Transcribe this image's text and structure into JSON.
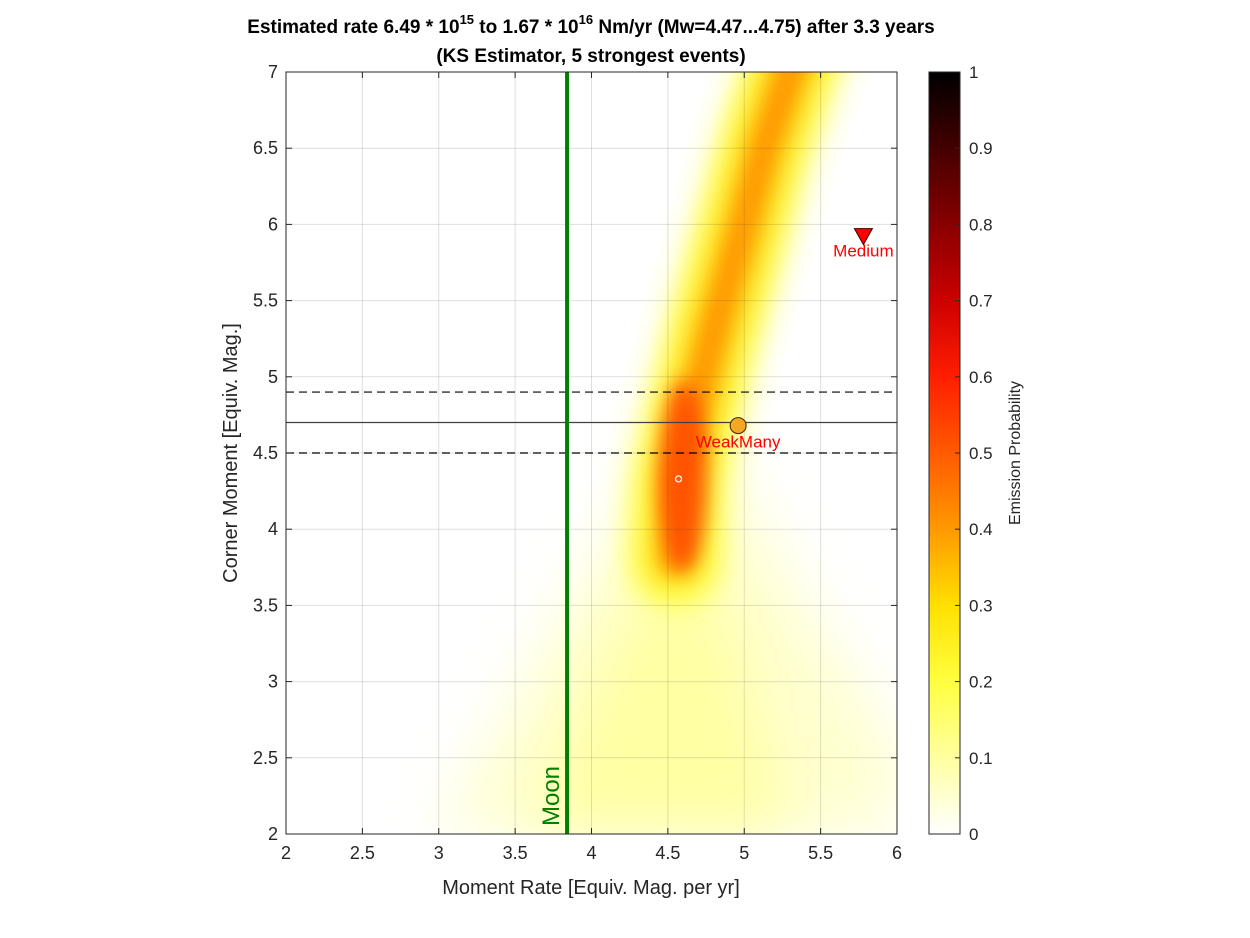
{
  "chart_data": {
    "type": "heatmap",
    "title_line1": {
      "before_sup1": "Estimated rate 6.49 * 10",
      "sup1": "15",
      "mid": " to 1.67 * 10",
      "sup2": "16",
      "after_sup2": " Nm/yr (Mw=4.47...4.75) after 3.3 years"
    },
    "title_line2": "(KS Estimator, 5 strongest events)",
    "xlabel": "Moment Rate [Equiv. Mag. per yr]",
    "ylabel": "Corner Moment [Equiv. Mag.]",
    "xlim": [
      2,
      6
    ],
    "ylim": [
      2,
      7
    ],
    "xticks": [
      2,
      2.5,
      3,
      3.5,
      4,
      4.5,
      5,
      5.5,
      6
    ],
    "xtick_labels": [
      "2",
      "2.5",
      "3",
      "3.5",
      "4",
      "4.5",
      "5",
      "5.5",
      "6"
    ],
    "yticks": [
      2,
      2.5,
      3,
      3.5,
      4,
      4.5,
      5,
      5.5,
      6,
      6.5,
      7
    ],
    "ytick_labels": [
      "2",
      "2.5",
      "3",
      "3.5",
      "4",
      "4.5",
      "5",
      "5.5",
      "6",
      "6.5",
      "7"
    ],
    "grid": true,
    "colormap": "hot (reversed)",
    "colorbar": {
      "label": "Emission Probability",
      "lim": [
        0,
        1
      ],
      "ticks": [
        0,
        0.1,
        0.2,
        0.3,
        0.4,
        0.5,
        0.6,
        0.7,
        0.8,
        0.9,
        1
      ],
      "tick_labels": [
        "0",
        "0.1",
        "0.2",
        "0.3",
        "0.4",
        "0.5",
        "0.6",
        "0.7",
        "0.8",
        "0.9",
        "1"
      ]
    },
    "heat_ridge": {
      "description_points": [
        [
          4.55,
          3.8
        ],
        [
          4.57,
          4.3
        ],
        [
          4.65,
          4.7
        ],
        [
          4.8,
          5.3
        ],
        [
          4.97,
          5.9
        ],
        [
          5.13,
          6.5
        ],
        [
          5.3,
          7.0
        ]
      ],
      "peak_value": 0.62,
      "peak_location": [
        4.57,
        4.3
      ]
    },
    "vertical_line": {
      "x": 3.84,
      "label": "Moon",
      "color": "#007f00"
    },
    "horizontal_lines": [
      {
        "y": 4.7,
        "style": "solid",
        "color": "#404040"
      },
      {
        "y": 4.9,
        "style": "dashed",
        "color": "#000000"
      },
      {
        "y": 4.5,
        "style": "dashed",
        "color": "#000000"
      }
    ],
    "markers": [
      {
        "name": "WeakMany",
        "x": 4.96,
        "y": 4.68,
        "shape": "circle",
        "color": "#f5a623",
        "label_color": "#ff0000"
      },
      {
        "name": "Medium",
        "x": 5.78,
        "y": 5.92,
        "shape": "triangle-down",
        "color": "#ff0000",
        "label_color": "#ff0000"
      }
    ],
    "small_marker": {
      "x": 4.57,
      "y": 4.33,
      "shape": "circle-open",
      "color": "#ffffff"
    }
  }
}
